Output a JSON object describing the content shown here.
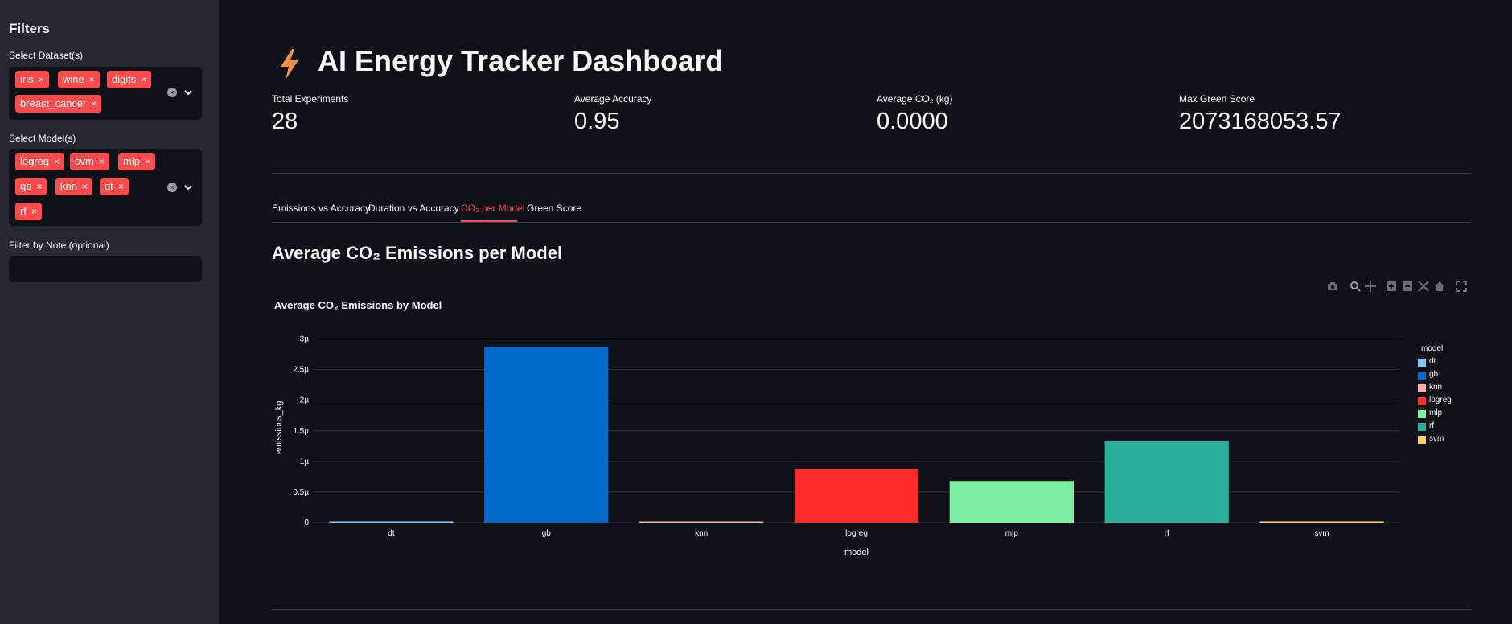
{
  "sidebar": {
    "title": "Filters",
    "dataset_label": "Select Dataset(s)",
    "datasets": [
      "iris",
      "wine",
      "digits",
      "breast_cancer"
    ],
    "model_label": "Select Model(s)",
    "models": [
      "logreg",
      "svm",
      "mlp",
      "gb",
      "knn",
      "dt",
      "rf"
    ],
    "note_label": "Filter by Note (optional)",
    "note_value": "",
    "remove_glyph": "×",
    "clear_glyph": "×"
  },
  "header": {
    "title": "AI Energy Tracker Dashboard",
    "icon": "lightning-bolt-icon"
  },
  "metrics": [
    {
      "label": "Total Experiments",
      "value": "28"
    },
    {
      "label": "Average Accuracy",
      "value": "0.95"
    },
    {
      "label": "Average CO₂ (kg)",
      "value": "0.0000"
    },
    {
      "label": "Max Green Score",
      "value": "2073168053.57"
    }
  ],
  "tabs": [
    {
      "label": "Emissions vs Accuracy",
      "active": false
    },
    {
      "label": "Duration vs Accuracy",
      "active": false
    },
    {
      "label": "CO₂ per Model",
      "active": true
    },
    {
      "label": "Green Score",
      "active": false
    }
  ],
  "section_title": "Average CO₂ Emissions per Model",
  "toolbar_icons": [
    "camera-icon",
    "zoom-icon",
    "pan-icon",
    "zoom-in-icon",
    "zoom-out-icon",
    "autoscale-icon",
    "home-icon",
    "fullscreen-icon"
  ],
  "colors": {
    "accent": "#ff4b4b",
    "background": "#0e1117",
    "sidebar": "#262730"
  },
  "chart_data": {
    "type": "bar",
    "title": "Average CO₂ Emissions by Model",
    "xlabel": "model",
    "ylabel": "emissions_kg",
    "categories": [
      "dt",
      "gb",
      "knn",
      "logreg",
      "mlp",
      "rf",
      "svm"
    ],
    "values": [
      2e-08,
      2.87e-06,
      2e-08,
      8.8e-07,
      6.8e-07,
      1.33e-06,
      2e-08
    ],
    "colors": [
      "#83c9ff",
      "#0068c9",
      "#ffabab",
      "#ff2b2b",
      "#7defa1",
      "#29b09d",
      "#ffd16a"
    ],
    "ylim": [
      0,
      3.1e-06
    ],
    "yticks": [
      0,
      5e-07,
      1e-06,
      1.5e-06,
      2e-06,
      2.5e-06,
      3e-06
    ],
    "ytick_labels": [
      "0",
      "0.5µ",
      "1µ",
      "1.5µ",
      "2µ",
      "2.5µ",
      "3µ"
    ],
    "legend_title": "model",
    "legend_position": "right",
    "grid": true
  }
}
